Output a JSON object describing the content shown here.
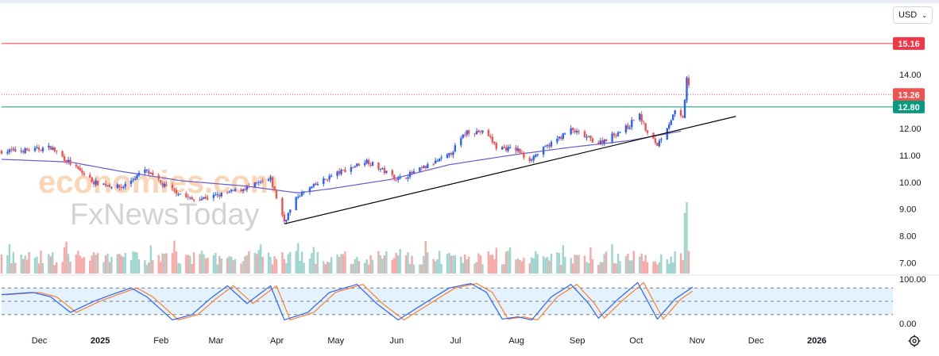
{
  "currency_selector": {
    "label": "USD",
    "icon": "chevron-down-icon"
  },
  "watermark": {
    "line1": "economies.com",
    "line2": "FxNewsToday"
  },
  "settings_icon": "gear-icon",
  "colors": {
    "up": "#2962ff",
    "down": "#ef5350",
    "ma": "#6a5acd",
    "resistance": "#f23645",
    "support": "#089981",
    "current": "#ef5350",
    "trendline": "#000000",
    "stoch_k": "#2962ff",
    "stoch_d": "#ff7f27",
    "stoch_band": "#e3f2fd"
  },
  "chart_data": [
    {
      "type": "candlestick",
      "price_axis": {
        "ticks": [
          "7.00",
          "8.00",
          "9.00",
          "10.00",
          "11.00",
          "12.00",
          "14.00"
        ],
        "ylim": [
          6.6,
          15.6
        ],
        "side": "right"
      },
      "time_axis": {
        "labels": [
          "Dec",
          "2025",
          "Feb",
          "Mar",
          "Apr",
          "May",
          "Jun",
          "Jul",
          "Aug",
          "Sep",
          "Oct",
          "Nov",
          "Dec",
          "2026"
        ]
      },
      "price_lines": [
        {
          "name": "resistance",
          "value": 15.16,
          "label": "15.16"
        },
        {
          "name": "last-price",
          "value": 13.26,
          "label": "13.26",
          "style": "dotted"
        },
        {
          "name": "support",
          "value": 12.8,
          "label": "12.80"
        }
      ],
      "trendline": {
        "from": {
          "date": "2025-04-08",
          "price": 8.45
        },
        "to": {
          "date": "2025-11-24",
          "price": 12.45
        }
      },
      "moving_average_anchors": [
        [
          "2024-11-15",
          10.85
        ],
        [
          "2024-12-20",
          10.75
        ],
        [
          "2025-01-15",
          10.4
        ],
        [
          "2025-02-15",
          10.05
        ],
        [
          "2025-03-20",
          9.85
        ],
        [
          "2025-04-15",
          9.6
        ],
        [
          "2025-05-01",
          9.75
        ],
        [
          "2025-06-01",
          10.1
        ],
        [
          "2025-07-01",
          10.65
        ],
        [
          "2025-08-01",
          11.0
        ],
        [
          "2025-09-01",
          11.3
        ],
        [
          "2025-10-01",
          11.55
        ],
        [
          "2025-10-27",
          11.9
        ]
      ],
      "price_anchors": [
        [
          "2024-11-15",
          11.15
        ],
        [
          "2024-12-01",
          11.2
        ],
        [
          "2024-12-10",
          11.3
        ],
        [
          "2024-12-20",
          10.7
        ],
        [
          "2025-01-01",
          10.0
        ],
        [
          "2025-01-15",
          9.8
        ],
        [
          "2025-01-27",
          10.45
        ],
        [
          "2025-02-05",
          9.9
        ],
        [
          "2025-02-20",
          9.35
        ],
        [
          "2025-03-05",
          9.5
        ],
        [
          "2025-03-20",
          9.8
        ],
        [
          "2025-04-01",
          10.1
        ],
        [
          "2025-04-08",
          8.55
        ],
        [
          "2025-04-15",
          9.5
        ],
        [
          "2025-05-01",
          10.2
        ],
        [
          "2025-05-20",
          10.8
        ],
        [
          "2025-06-05",
          10.1
        ],
        [
          "2025-06-20",
          10.6
        ],
        [
          "2025-07-01",
          11.0
        ],
        [
          "2025-07-10",
          11.9
        ],
        [
          "2025-07-20",
          11.85
        ],
        [
          "2025-07-25",
          11.3
        ],
        [
          "2025-08-05",
          11.2
        ],
        [
          "2025-08-10",
          10.8
        ],
        [
          "2025-08-25",
          11.6
        ],
        [
          "2025-09-01",
          11.95
        ],
        [
          "2025-09-15",
          11.45
        ],
        [
          "2025-10-01",
          12.1
        ],
        [
          "2025-10-05",
          12.65
        ],
        [
          "2025-10-10",
          11.8
        ],
        [
          "2025-10-15",
          11.4
        ],
        [
          "2025-10-24",
          12.6
        ],
        [
          "2025-10-28",
          12.35
        ],
        [
          "2025-10-30",
          13.85
        ],
        [
          "2025-11-02",
          13.26
        ]
      ]
    },
    {
      "type": "bar",
      "name": "volume",
      "spikes": [
        {
          "date": "2025-10-29",
          "relative": 0.85
        },
        {
          "date": "2025-10-30",
          "relative": 1.0
        },
        {
          "date": "2025-11-01",
          "relative": 0.82
        },
        {
          "date": "2025-11-02",
          "relative": 0.42
        }
      ]
    },
    {
      "type": "line",
      "name": "stochastic",
      "y_axis": {
        "ticks": [
          "100.00",
          "0.00"
        ],
        "ylim": [
          0,
          100
        ]
      },
      "bands": [
        80,
        50,
        20
      ],
      "anchors": [
        [
          "2024-11-15",
          65
        ],
        [
          "2024-12-01",
          70
        ],
        [
          "2024-12-10",
          60
        ],
        [
          "2024-12-20",
          25
        ],
        [
          "2025-01-01",
          50
        ],
        [
          "2025-01-10",
          65
        ],
        [
          "2025-01-20",
          80
        ],
        [
          "2025-01-28",
          60
        ],
        [
          "2025-02-10",
          8
        ],
        [
          "2025-02-20",
          20
        ],
        [
          "2025-03-01",
          55
        ],
        [
          "2025-03-10",
          85
        ],
        [
          "2025-03-20",
          45
        ],
        [
          "2025-04-01",
          85
        ],
        [
          "2025-04-08",
          8
        ],
        [
          "2025-04-20",
          25
        ],
        [
          "2025-05-01",
          70
        ],
        [
          "2025-05-15",
          88
        ],
        [
          "2025-05-25",
          45
        ],
        [
          "2025-06-05",
          8
        ],
        [
          "2025-06-20",
          50
        ],
        [
          "2025-07-01",
          80
        ],
        [
          "2025-07-12",
          90
        ],
        [
          "2025-07-20",
          70
        ],
        [
          "2025-07-28",
          10
        ],
        [
          "2025-08-05",
          15
        ],
        [
          "2025-08-12",
          8
        ],
        [
          "2025-08-22",
          60
        ],
        [
          "2025-09-01",
          88
        ],
        [
          "2025-09-10",
          45
        ],
        [
          "2025-09-15",
          12
        ],
        [
          "2025-09-25",
          55
        ],
        [
          "2025-10-05",
          92
        ],
        [
          "2025-10-15",
          10
        ],
        [
          "2025-10-24",
          55
        ],
        [
          "2025-11-02",
          82
        ]
      ]
    }
  ]
}
